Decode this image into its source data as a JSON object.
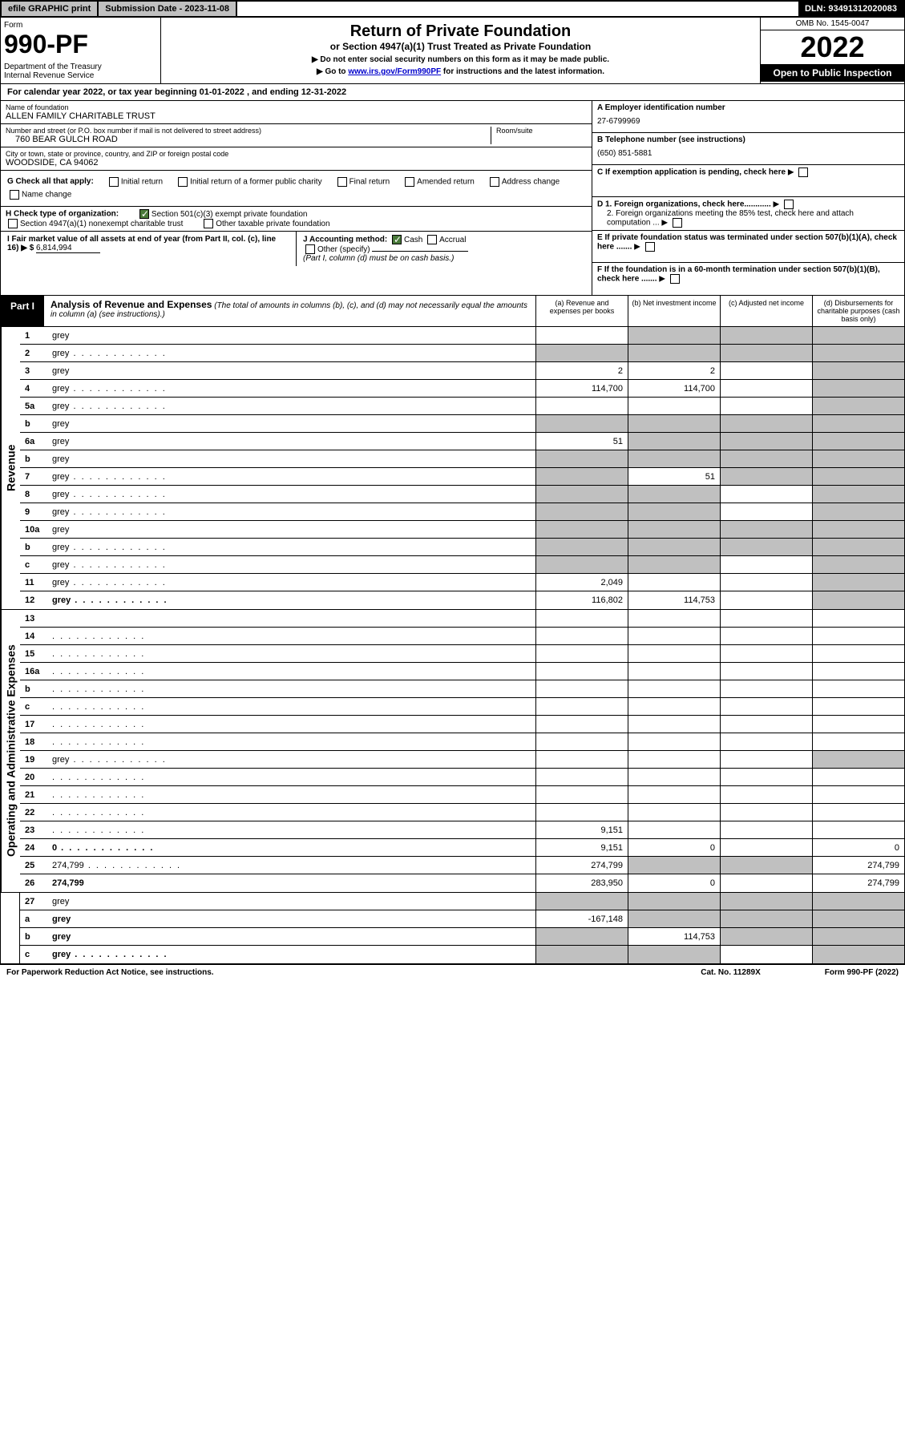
{
  "topbar": {
    "efile": "efile GRAPHIC print",
    "submission": "Submission Date - 2023-11-08",
    "dln": "DLN: 93491312020083"
  },
  "header": {
    "form_label": "Form",
    "form_number": "990-PF",
    "dept": "Department of the Treasury\nInternal Revenue Service",
    "title": "Return of Private Foundation",
    "subtitle": "or Section 4947(a)(1) Trust Treated as Private Foundation",
    "note1": "▶ Do not enter social security numbers on this form as it may be made public.",
    "note2_pre": "▶ Go to ",
    "note2_link": "www.irs.gov/Form990PF",
    "note2_post": " for instructions and the latest information.",
    "omb": "OMB No. 1545-0047",
    "year": "2022",
    "open": "Open to Public Inspection"
  },
  "cal_year": "For calendar year 2022, or tax year beginning 01-01-2022                              , and ending 12-31-2022",
  "info": {
    "name_label": "Name of foundation",
    "name": "ALLEN FAMILY CHARITABLE TRUST",
    "addr_label": "Number and street (or P.O. box number if mail is not delivered to street address)",
    "addr": "760 BEAR GULCH ROAD",
    "room_label": "Room/suite",
    "city_label": "City or town, state or province, country, and ZIP or foreign postal code",
    "city": "WOODSIDE, CA  94062",
    "a_label": "A Employer identification number",
    "a_val": "27-6799969",
    "b_label": "B Telephone number (see instructions)",
    "b_val": "(650) 851-5881",
    "c_label": "C If exemption application is pending, check here",
    "d1": "D 1. Foreign organizations, check here............",
    "d2": "2. Foreign organizations meeting the 85% test, check here and attach computation ...",
    "e": "E  If private foundation status was terminated under section 507(b)(1)(A), check here .......",
    "f": "F  If the foundation is in a 60-month termination under section 507(b)(1)(B), check here .......",
    "g_label": "G Check all that apply:",
    "g_opts": [
      "Initial return",
      "Initial return of a former public charity",
      "Final return",
      "Amended return",
      "Address change",
      "Name change"
    ],
    "h_label": "H Check type of organization:",
    "h_opt1": "Section 501(c)(3) exempt private foundation",
    "h_opt2": "Section 4947(a)(1) nonexempt charitable trust",
    "h_opt3": "Other taxable private foundation",
    "i_label": "I Fair market value of all assets at end of year (from Part II, col. (c), line 16) ▶ $",
    "i_val": "6,814,994",
    "j_label": "J Accounting method:",
    "j_cash": "Cash",
    "j_accrual": "Accrual",
    "j_other": "Other (specify)",
    "j_note": "(Part I, column (d) must be on cash basis.)"
  },
  "part1": {
    "label": "Part I",
    "title": "Analysis of Revenue and Expenses",
    "title_note": "(The total of amounts in columns (b), (c), and (d) may not necessarily equal the amounts in column (a) (see instructions).)",
    "cols": {
      "a": "(a)  Revenue and expenses per books",
      "b": "(b)  Net investment income",
      "c": "(c)  Adjusted net income",
      "d": "(d)  Disbursements for charitable purposes (cash basis only)"
    }
  },
  "side_labels": {
    "rev": "Revenue",
    "exp": "Operating and Administrative Expenses"
  },
  "rows": [
    {
      "n": "1",
      "d": "grey",
      "a": "",
      "b": "grey",
      "c": "grey"
    },
    {
      "n": "2",
      "d": "grey",
      "a": "grey",
      "b": "grey",
      "c": "grey",
      "dots": true
    },
    {
      "n": "3",
      "d": "grey",
      "a": "2",
      "b": "2",
      "c": ""
    },
    {
      "n": "4",
      "d": "grey",
      "a": "114,700",
      "b": "114,700",
      "c": "",
      "dots": true
    },
    {
      "n": "5a",
      "d": "grey",
      "a": "",
      "b": "",
      "c": "",
      "dots": true
    },
    {
      "n": "b",
      "d": "grey",
      "a": "grey",
      "b": "grey",
      "c": "grey"
    },
    {
      "n": "6a",
      "d": "grey",
      "a": "51",
      "b": "grey",
      "c": "grey"
    },
    {
      "n": "b",
      "d": "grey",
      "a": "grey",
      "b": "grey",
      "c": "grey"
    },
    {
      "n": "7",
      "d": "grey",
      "a": "grey",
      "b": "51",
      "c": "grey",
      "dots": true
    },
    {
      "n": "8",
      "d": "grey",
      "a": "grey",
      "b": "grey",
      "c": "",
      "dots": true
    },
    {
      "n": "9",
      "d": "grey",
      "a": "grey",
      "b": "grey",
      "c": "",
      "dots": true
    },
    {
      "n": "10a",
      "d": "grey",
      "a": "grey",
      "b": "grey",
      "c": "grey"
    },
    {
      "n": "b",
      "d": "grey",
      "a": "grey",
      "b": "grey",
      "c": "grey",
      "dots": true
    },
    {
      "n": "c",
      "d": "grey",
      "a": "grey",
      "b": "grey",
      "c": "",
      "dots": true
    },
    {
      "n": "11",
      "d": "grey",
      "a": "2,049",
      "b": "",
      "c": "",
      "dots": true
    },
    {
      "n": "12",
      "d": "grey",
      "a": "116,802",
      "b": "114,753",
      "c": "",
      "bold": true,
      "dots": true
    }
  ],
  "exp_rows": [
    {
      "n": "13",
      "d": "",
      "a": "",
      "b": "",
      "c": ""
    },
    {
      "n": "14",
      "d": "",
      "a": "",
      "b": "",
      "c": "",
      "dots": true
    },
    {
      "n": "15",
      "d": "",
      "a": "",
      "b": "",
      "c": "",
      "dots": true
    },
    {
      "n": "16a",
      "d": "",
      "a": "",
      "b": "",
      "c": "",
      "dots": true
    },
    {
      "n": "b",
      "d": "",
      "a": "",
      "b": "",
      "c": "",
      "dots": true
    },
    {
      "n": "c",
      "d": "",
      "a": "",
      "b": "",
      "c": "",
      "dots": true
    },
    {
      "n": "17",
      "d": "",
      "a": "",
      "b": "",
      "c": "",
      "dots": true
    },
    {
      "n": "18",
      "d": "",
      "a": "",
      "b": "",
      "c": "",
      "dots": true
    },
    {
      "n": "19",
      "d": "grey",
      "a": "",
      "b": "",
      "c": "",
      "dots": true
    },
    {
      "n": "20",
      "d": "",
      "a": "",
      "b": "",
      "c": "",
      "dots": true
    },
    {
      "n": "21",
      "d": "",
      "a": "",
      "b": "",
      "c": "",
      "dots": true
    },
    {
      "n": "22",
      "d": "",
      "a": "",
      "b": "",
      "c": "",
      "dots": true
    },
    {
      "n": "23",
      "d": "",
      "a": "9,151",
      "b": "",
      "c": "",
      "dots": true
    },
    {
      "n": "24",
      "d": "0",
      "a": "9,151",
      "b": "0",
      "c": "",
      "bold": true,
      "dots": true
    },
    {
      "n": "25",
      "d": "274,799",
      "a": "274,799",
      "b": "grey",
      "c": "grey",
      "dots": true
    },
    {
      "n": "26",
      "d": "274,799",
      "a": "283,950",
      "b": "0",
      "c": "",
      "bold": true
    }
  ],
  "final_rows": [
    {
      "n": "27",
      "d": "grey",
      "a": "grey",
      "b": "grey",
      "c": "grey"
    },
    {
      "n": "a",
      "d": "grey",
      "a": "-167,148",
      "b": "grey",
      "c": "grey",
      "bold": true
    },
    {
      "n": "b",
      "d": "grey",
      "a": "grey",
      "b": "114,753",
      "c": "grey",
      "bold": true
    },
    {
      "n": "c",
      "d": "grey",
      "a": "grey",
      "b": "grey",
      "c": "",
      "bold": true,
      "dots": true
    }
  ],
  "footer": {
    "left": "For Paperwork Reduction Act Notice, see instructions.",
    "mid": "Cat. No. 11289X",
    "right": "Form 990-PF (2022)"
  }
}
